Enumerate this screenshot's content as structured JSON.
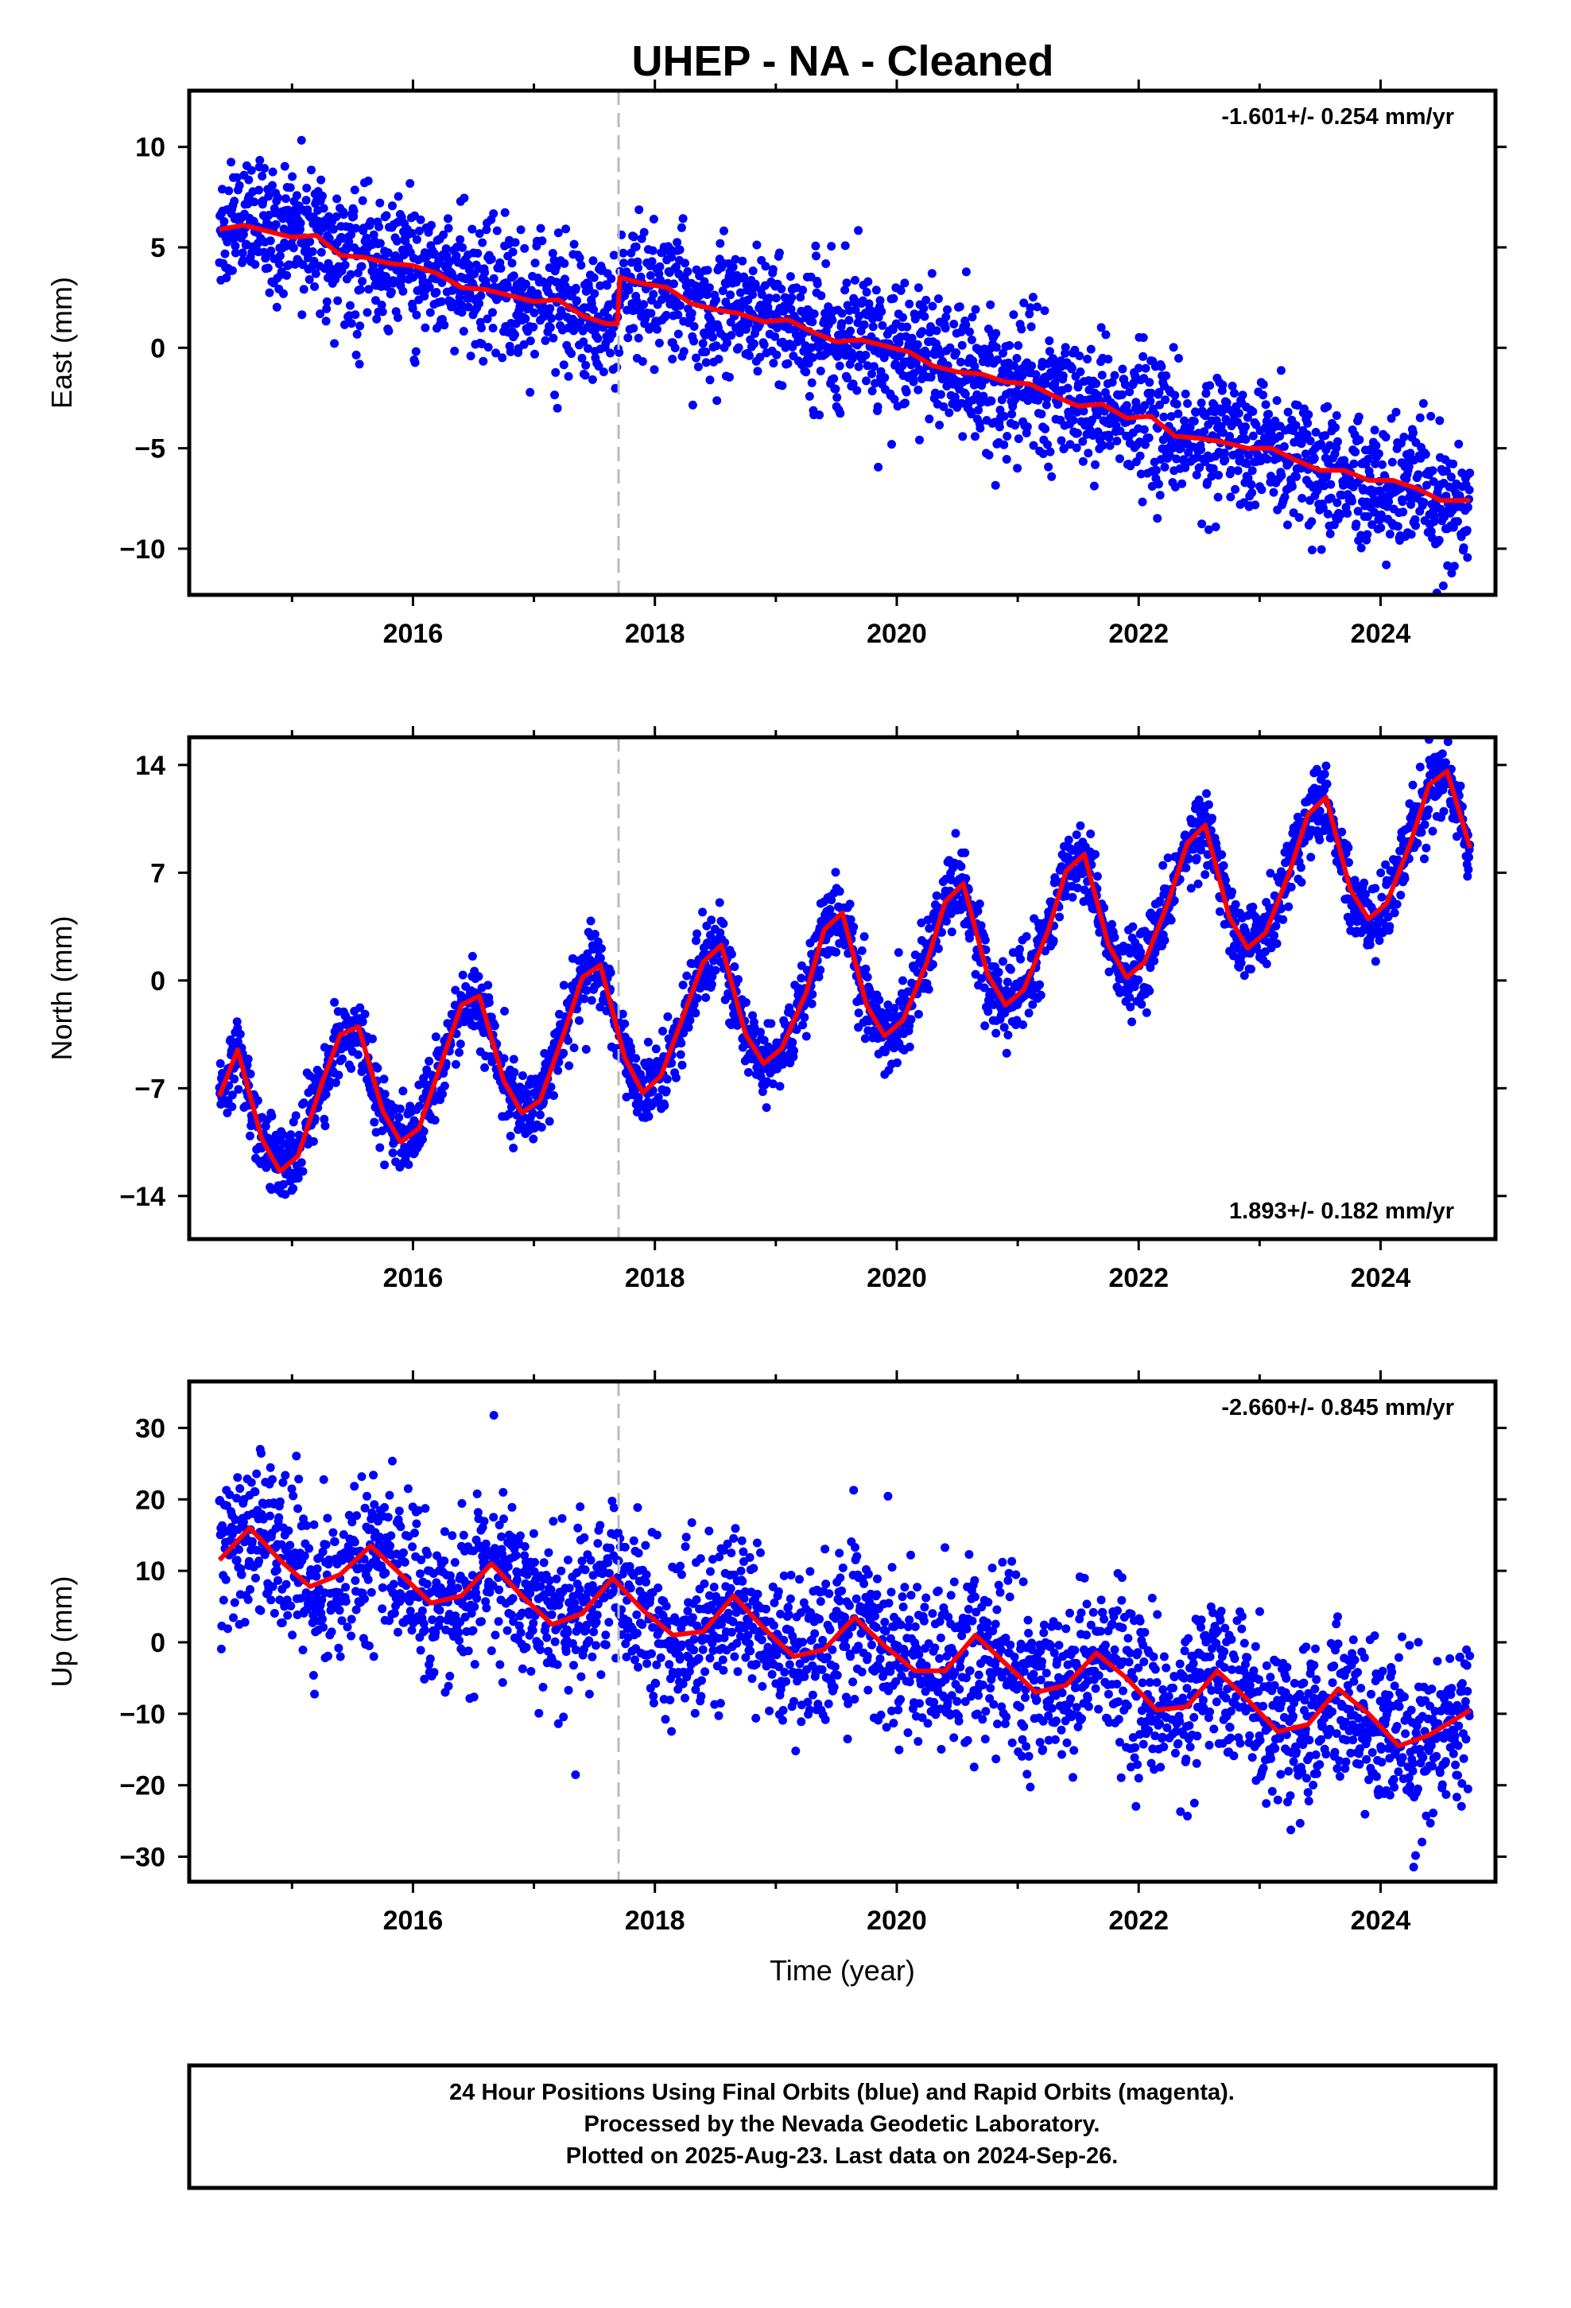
{
  "title": "UHEP  - NA - Cleaned",
  "footer": {
    "line1": "24 Hour Positions Using Final Orbits (blue) and Rapid Orbits (magenta).",
    "line2": "Processed by the Nevada Geodetic Laboratory.",
    "line3": "Plotted on 2025-Aug-23. Last data on 2024-Sep-26."
  },
  "colors": {
    "data": "#0000ff",
    "model": "#ff0000",
    "event_line": "#bbbbbb",
    "frame": "#000000"
  },
  "chart_data": [
    {
      "type": "scatter",
      "name": "east",
      "ylabel": "East (mm)",
      "xlabel": "",
      "xlim": [
        2014.15,
        2024.95
      ],
      "ylim": [
        -12.3,
        12.8
      ],
      "yticks": [
        10,
        5,
        0,
        -5,
        -10
      ],
      "ytick_labels": [
        "10",
        "5",
        "0",
        "−5",
        "−10"
      ],
      "xticks": [
        2016,
        2018,
        2020,
        2022,
        2024
      ],
      "xtick_labels": [
        "2016",
        "2018",
        "2020",
        "2022",
        "2024"
      ],
      "rate_label": "-1.601+/- 0.254 mm/yr",
      "rate_position": "top-right",
      "event_year": 2017.7,
      "start_year": 2014.4,
      "end_year": 2024.74,
      "data_spread": 1.6,
      "model": {
        "x": [
          2014.4,
          2014.6,
          2014.8,
          2015.0,
          2015.2,
          2015.4,
          2015.6,
          2015.8,
          2016.0,
          2016.2,
          2016.4,
          2016.6,
          2016.8,
          2017.0,
          2017.2,
          2017.4,
          2017.6,
          2017.69,
          2017.71,
          2017.9,
          2018.1,
          2018.3,
          2018.5,
          2018.7,
          2018.9,
          2019.1,
          2019.3,
          2019.5,
          2019.7,
          2019.9,
          2020.1,
          2020.3,
          2020.5,
          2020.7,
          2020.9,
          2021.1,
          2021.3,
          2021.5,
          2021.7,
          2021.9,
          2022.1,
          2022.3,
          2022.5,
          2022.7,
          2022.9,
          2023.1,
          2023.3,
          2023.5,
          2023.7,
          2023.9,
          2024.1,
          2024.3,
          2024.5,
          2024.74
        ],
        "y": [
          5.9,
          6.1,
          5.8,
          5.5,
          5.6,
          4.6,
          4.5,
          4.2,
          4.1,
          3.7,
          3.0,
          2.9,
          2.6,
          2.3,
          2.4,
          1.6,
          1.2,
          1.2,
          3.5,
          3.2,
          3.0,
          2.2,
          1.9,
          1.7,
          1.3,
          1.4,
          0.8,
          0.3,
          0.4,
          0.1,
          -0.2,
          -0.9,
          -1.2,
          -1.3,
          -1.7,
          -1.8,
          -2.4,
          -2.9,
          -2.8,
          -3.5,
          -3.4,
          -4.4,
          -4.5,
          -4.7,
          -5.0,
          -5.0,
          -5.6,
          -6.1,
          -6.1,
          -6.6,
          -6.6,
          -7.0,
          -7.6,
          -7.6
        ]
      }
    },
    {
      "type": "scatter",
      "name": "north",
      "ylabel": "North (mm)",
      "xlabel": "",
      "xlim": [
        2014.15,
        2024.95
      ],
      "ylim": [
        -16.8,
        15.8
      ],
      "yticks": [
        14,
        7,
        0,
        -7,
        -14
      ],
      "ytick_labels": [
        "14",
        "7",
        "0",
        "−7",
        "−14"
      ],
      "xticks": [
        2016,
        2018,
        2020,
        2022,
        2024
      ],
      "xtick_labels": [
        "2016",
        "2018",
        "2020",
        "2022",
        "2024"
      ],
      "rate_label": "1.893+/- 0.182 mm/yr",
      "rate_position": "bottom-right",
      "event_year": 2017.7,
      "start_year": 2014.4,
      "end_year": 2024.74,
      "data_spread": 1.2,
      "model": {
        "x": [
          2014.4,
          2014.55,
          2014.75,
          2014.9,
          2015.05,
          2015.25,
          2015.4,
          2015.55,
          2015.75,
          2015.9,
          2016.05,
          2016.25,
          2016.4,
          2016.55,
          2016.75,
          2016.9,
          2017.05,
          2017.25,
          2017.4,
          2017.55,
          2017.75,
          2017.9,
          2018.05,
          2018.25,
          2018.4,
          2018.55,
          2018.75,
          2018.9,
          2019.05,
          2019.25,
          2019.4,
          2019.55,
          2019.75,
          2019.9,
          2020.05,
          2020.25,
          2020.4,
          2020.55,
          2020.75,
          2020.9,
          2021.05,
          2021.25,
          2021.4,
          2021.55,
          2021.75,
          2021.9,
          2022.05,
          2022.25,
          2022.4,
          2022.55,
          2022.75,
          2022.9,
          2023.05,
          2023.25,
          2023.4,
          2023.55,
          2023.75,
          2023.9,
          2024.05,
          2024.25,
          2024.4,
          2024.55,
          2024.74
        ],
        "y": [
          -7.5,
          -4.5,
          -10.3,
          -12.4,
          -11.4,
          -6.6,
          -3.5,
          -3.0,
          -8.5,
          -10.5,
          -9.6,
          -5.0,
          -1.6,
          -1.0,
          -6.5,
          -8.6,
          -7.8,
          -3.4,
          0.2,
          1.0,
          -5.0,
          -7.3,
          -6.2,
          -2.0,
          1.2,
          2.3,
          -3.5,
          -5.4,
          -4.4,
          -0.8,
          3.3,
          4.4,
          -1.6,
          -3.6,
          -2.6,
          1.2,
          5.1,
          6.3,
          0.4,
          -1.6,
          -0.6,
          3.2,
          7.1,
          8.2,
          2.3,
          0.2,
          1.2,
          5.2,
          8.9,
          10.1,
          4.1,
          2.1,
          3.1,
          7.1,
          10.8,
          11.9,
          5.9,
          4.0,
          5.0,
          9.0,
          12.7,
          13.6,
          8.6
        ]
      }
    },
    {
      "type": "scatter",
      "name": "up",
      "ylabel": "Up (mm)",
      "xlabel": "Time (year)",
      "xlim": [
        2014.15,
        2024.95
      ],
      "ylim": [
        -33.5,
        36.5
      ],
      "yticks": [
        30,
        20,
        10,
        0,
        -10,
        -20,
        -30
      ],
      "ytick_labels": [
        "30",
        "20",
        "10",
        "0",
        "−10",
        "−20",
        "−30"
      ],
      "xticks": [
        2016,
        2018,
        2020,
        2022,
        2024
      ],
      "xtick_labels": [
        "2016",
        "2018",
        "2020",
        "2022",
        "2024"
      ],
      "rate_label": "-2.660+/- 0.845 mm/yr",
      "rate_position": "top-right",
      "event_year": 2017.7,
      "start_year": 2014.4,
      "end_year": 2024.74,
      "data_spread": 5.5,
      "model": {
        "x": [
          2014.4,
          2014.65,
          2014.9,
          2015.15,
          2015.4,
          2015.65,
          2015.9,
          2016.15,
          2016.4,
          2016.65,
          2016.9,
          2017.15,
          2017.4,
          2017.65,
          2017.9,
          2018.15,
          2018.4,
          2018.65,
          2018.9,
          2019.15,
          2019.4,
          2019.65,
          2019.9,
          2020.15,
          2020.4,
          2020.65,
          2020.9,
          2021.15,
          2021.4,
          2021.65,
          2021.9,
          2022.15,
          2022.4,
          2022.65,
          2022.9,
          2023.15,
          2023.4,
          2023.65,
          2023.9,
          2024.15,
          2024.4,
          2024.74
        ],
        "y": [
          11.5,
          16.0,
          11.5,
          7.8,
          9.5,
          13.5,
          9.5,
          5.5,
          6.5,
          11.0,
          6.5,
          2.5,
          4.0,
          9.0,
          4.5,
          1.0,
          1.5,
          6.5,
          2.0,
          -2.0,
          -1.0,
          3.5,
          -0.5,
          -4.0,
          -4.0,
          1.0,
          -3.0,
          -7.0,
          -6.0,
          -1.5,
          -5.0,
          -9.5,
          -9.0,
          -4.0,
          -8.0,
          -12.5,
          -11.5,
          -6.5,
          -10.0,
          -14.5,
          -13.0,
          -9.5
        ]
      }
    }
  ]
}
